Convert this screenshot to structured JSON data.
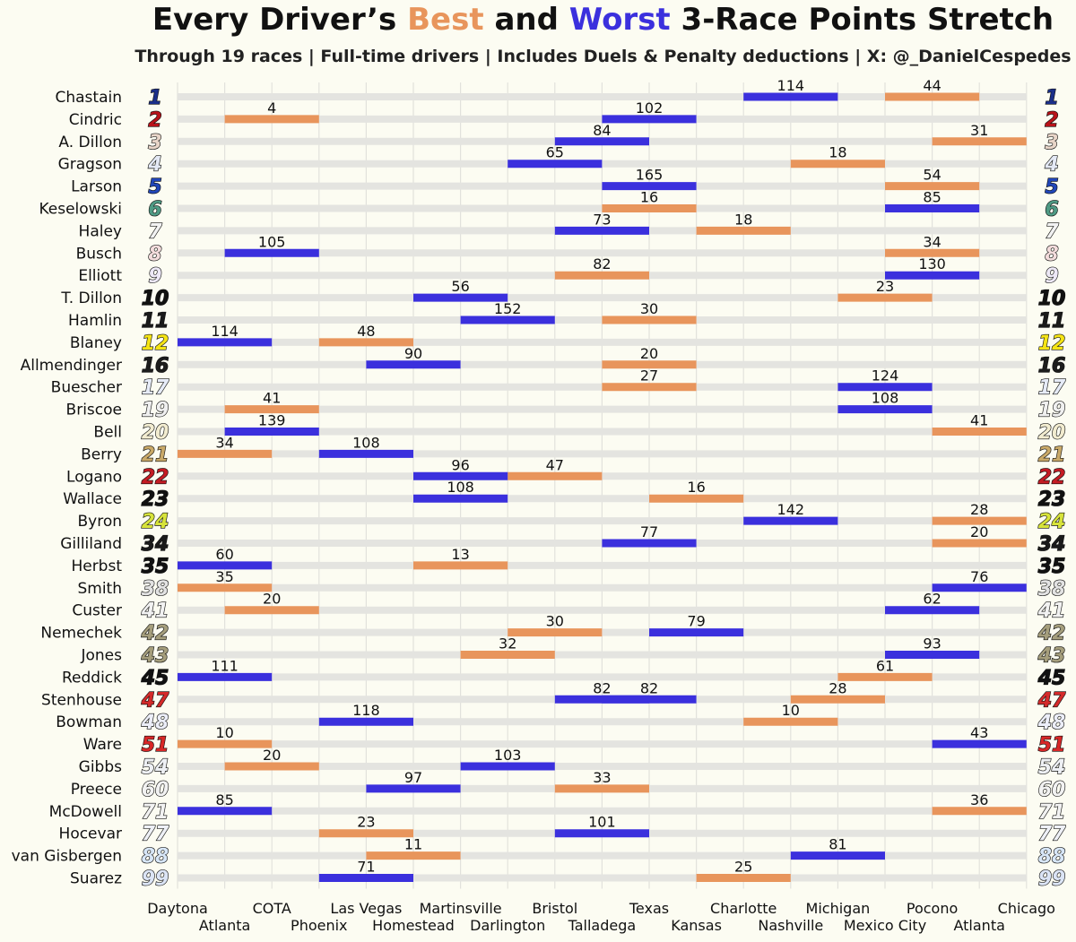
{
  "header": {
    "title_pre": "Every Driver’s ",
    "title_best": "Best",
    "title_mid": " and ",
    "title_worst": "Worst",
    "title_post": " 3-Race Points Stretch",
    "subtitle": "Through 19 races | Full-time drivers | Includes Duels & Penalty deductions | X: @_DanielCespedes"
  },
  "colors": {
    "best": "#e8955c",
    "worst": "#3b30dd",
    "track": "#e4e4e0",
    "background": "#fcfcf2",
    "gridline": "#e2e2dc"
  },
  "chart_data": {
    "type": "range-bar",
    "title": "Every Driver’s Best and Worst 3-Race Points Stretch",
    "subtitle": "Through 19 races | Full-time drivers | Includes Duels & Penalty deductions | X: @_DanielCespedes",
    "x_tracks": [
      "Daytona",
      "Atlanta",
      "COTA",
      "Phoenix",
      "Las Vegas",
      "Homestead",
      "Martinsville",
      "Darlington",
      "Bristol",
      "Talladega",
      "Texas",
      "Kansas",
      "Charlotte",
      "Nashville",
      "Michigan",
      "Mexico City",
      "Pocono",
      "Atlanta",
      "Chicago"
    ],
    "grid": true,
    "drivers": [
      {
        "name": "Chastain",
        "number": "1",
        "num_color": "#1b2f8a",
        "best": {
          "start": 15,
          "points": 44
        },
        "worst": {
          "start": 12,
          "points": 114
        }
      },
      {
        "name": "Cindric",
        "number": "2",
        "num_color": "#b8131a",
        "best": {
          "start": 1,
          "points": 4
        },
        "worst": {
          "start": 9,
          "points": 102
        }
      },
      {
        "name": "A. Dillon",
        "number": "3",
        "num_color": "#e8d5c8",
        "best": {
          "start": 16,
          "points": 31
        },
        "worst": {
          "start": 8,
          "points": 84
        }
      },
      {
        "name": "Gragson",
        "number": "4",
        "num_color": "#e4e9f5",
        "best": {
          "start": 13,
          "points": 18
        },
        "worst": {
          "start": 7,
          "points": 65
        }
      },
      {
        "name": "Larson",
        "number": "5",
        "num_color": "#2146b8",
        "best": {
          "start": 15,
          "points": 54
        },
        "worst": {
          "start": 9,
          "points": 165
        }
      },
      {
        "name": "Keselowski",
        "number": "6",
        "num_color": "#4f9a84",
        "best": {
          "start": 9,
          "points": 16
        },
        "worst": {
          "start": 15,
          "points": 85
        }
      },
      {
        "name": "Haley",
        "number": "7",
        "num_color": "#f2f2f2",
        "best": {
          "start": 11,
          "points": 18
        },
        "worst": {
          "start": 8,
          "points": 73
        }
      },
      {
        "name": "Busch",
        "number": "8",
        "num_color": "#f3dcdc",
        "best": {
          "start": 15,
          "points": 34
        },
        "worst": {
          "start": 1,
          "points": 105
        }
      },
      {
        "name": "Elliott",
        "number": "9",
        "num_color": "#ede8f6",
        "best": {
          "start": 8,
          "points": 82
        },
        "worst": {
          "start": 15,
          "points": 130
        }
      },
      {
        "name": "T. Dillon",
        "number": "10",
        "num_color": "#111111",
        "best": {
          "start": 14,
          "points": 23
        },
        "worst": {
          "start": 5,
          "points": 56
        }
      },
      {
        "name": "Hamlin",
        "number": "11",
        "num_color": "#1a1a1a",
        "best": {
          "start": 9,
          "points": 30
        },
        "worst": {
          "start": 6,
          "points": 152
        }
      },
      {
        "name": "Blaney",
        "number": "12",
        "num_color": "#f5e414",
        "best": {
          "start": 3,
          "points": 48
        },
        "worst": {
          "start": 0,
          "points": 114
        }
      },
      {
        "name": "Allmendinger",
        "number": "16",
        "num_color": "#1c1c1c",
        "best": {
          "start": 9,
          "points": 20
        },
        "worst": {
          "start": 4,
          "points": 90
        }
      },
      {
        "name": "Buescher",
        "number": "17",
        "num_color": "#e6ebf7",
        "best": {
          "start": 9,
          "points": 27
        },
        "worst": {
          "start": 14,
          "points": 124
        }
      },
      {
        "name": "Briscoe",
        "number": "19",
        "num_color": "#f0f0f0",
        "best": {
          "start": 1,
          "points": 41
        },
        "worst": {
          "start": 14,
          "points": 108
        }
      },
      {
        "name": "Bell",
        "number": "20",
        "num_color": "#f2ecd0",
        "best": {
          "start": 16,
          "points": 41
        },
        "worst": {
          "start": 1,
          "points": 139
        }
      },
      {
        "name": "Berry",
        "number": "21",
        "num_color": "#c9a968",
        "best": {
          "start": 0,
          "points": 34
        },
        "worst": {
          "start": 3,
          "points": 108
        }
      },
      {
        "name": "Logano",
        "number": "22",
        "num_color": "#c41c24",
        "best": {
          "start": 7,
          "points": 47
        },
        "worst": {
          "start": 5,
          "points": 96
        }
      },
      {
        "name": "Wallace",
        "number": "23",
        "num_color": "#111111",
        "best": {
          "start": 10,
          "points": 16
        },
        "worst": {
          "start": 5,
          "points": 108
        }
      },
      {
        "name": "Byron",
        "number": "24",
        "num_color": "#d7e33a",
        "best": {
          "start": 16,
          "points": 28
        },
        "worst": {
          "start": 12,
          "points": 142
        }
      },
      {
        "name": "Gilliland",
        "number": "34",
        "num_color": "#1a1a1a",
        "best": {
          "start": 16,
          "points": 20
        },
        "worst": {
          "start": 9,
          "points": 77
        }
      },
      {
        "name": "Herbst",
        "number": "35",
        "num_color": "#111111",
        "best": {
          "start": 5,
          "points": 13
        },
        "worst": {
          "start": 0,
          "points": 60
        }
      },
      {
        "name": "Smith",
        "number": "38",
        "num_color": "#e2e2e2",
        "best": {
          "start": 0,
          "points": 35
        },
        "worst": {
          "start": 16,
          "points": 76
        }
      },
      {
        "name": "Custer",
        "number": "41",
        "num_color": "#f2f2f2",
        "best": {
          "start": 1,
          "points": 20
        },
        "worst": {
          "start": 15,
          "points": 62
        }
      },
      {
        "name": "Nemechek",
        "number": "42",
        "num_color": "#a59e7c",
        "best": {
          "start": 7,
          "points": 30
        },
        "worst": {
          "start": 10,
          "points": 79
        }
      },
      {
        "name": "Jones",
        "number": "43",
        "num_color": "#a59e7c",
        "best": {
          "start": 6,
          "points": 32
        },
        "worst": {
          "start": 15,
          "points": 93
        }
      },
      {
        "name": "Reddick",
        "number": "45",
        "num_color": "#111111",
        "best": {
          "start": 14,
          "points": 61
        },
        "worst": {
          "start": 0,
          "points": 111
        }
      },
      {
        "name": "Stenhouse",
        "number": "47",
        "num_color": "#d42a2a",
        "best": {
          "start": 13,
          "points": 28
        },
        "worst": {
          "start": 8,
          "points": 82
        },
        "worst2": {
          "start": 9,
          "points": 82
        }
      },
      {
        "name": "Bowman",
        "number": "48",
        "num_color": "#eceef8",
        "best": {
          "start": 12,
          "points": 10
        },
        "worst": {
          "start": 3,
          "points": 118
        }
      },
      {
        "name": "Ware",
        "number": "51",
        "num_color": "#d82727",
        "best": {
          "start": 0,
          "points": 10
        },
        "worst": {
          "start": 16,
          "points": 43
        }
      },
      {
        "name": "Gibbs",
        "number": "54",
        "num_color": "#eef0f4",
        "best": {
          "start": 1,
          "points": 20
        },
        "worst": {
          "start": 6,
          "points": 103
        }
      },
      {
        "name": "Preece",
        "number": "60",
        "num_color": "#f2f2f2",
        "best": {
          "start": 8,
          "points": 33
        },
        "worst": {
          "start": 4,
          "points": 97
        }
      },
      {
        "name": "McDowell",
        "number": "71",
        "num_color": "#f2f2f2",
        "best": {
          "start": 16,
          "points": 36
        },
        "worst": {
          "start": 0,
          "points": 85
        }
      },
      {
        "name": "Hocevar",
        "number": "77",
        "num_color": "#eef0f6",
        "best": {
          "start": 3,
          "points": 23
        },
        "worst": {
          "start": 8,
          "points": 101
        }
      },
      {
        "name": "van Gisbergen",
        "number": "88",
        "num_color": "#d7e6f7",
        "best": {
          "start": 4,
          "points": 11
        },
        "worst": {
          "start": 13,
          "points": 81
        }
      },
      {
        "name": "Suarez",
        "number": "99",
        "num_color": "#dbe4f5",
        "best": {
          "start": 11,
          "points": 25
        },
        "worst": {
          "start": 3,
          "points": 71
        }
      }
    ]
  }
}
